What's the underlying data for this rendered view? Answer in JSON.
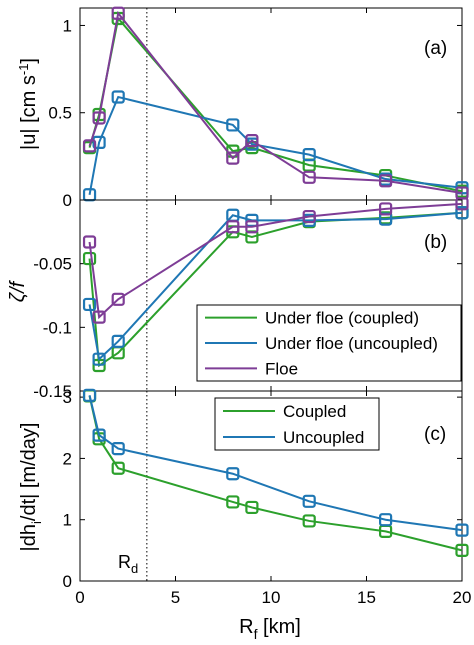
{
  "chart_data": [
    {
      "type": "line",
      "panel": "(a)",
      "ylabel": "|u| [cm s⁻¹]",
      "xlim": [
        0,
        20
      ],
      "ylim": [
        0,
        1.1
      ],
      "yticks": [
        0,
        0.5,
        1
      ],
      "ytick_labels": [
        "0",
        "0.5",
        "1"
      ],
      "x": [
        0.5,
        1,
        2,
        8,
        9,
        12,
        16,
        20
      ],
      "series": [
        {
          "key": "coupled",
          "color": "#2ca02c",
          "values": [
            0.3,
            0.49,
            1.04,
            0.28,
            0.3,
            0.2,
            0.14,
            0.05
          ]
        },
        {
          "key": "uncoupled",
          "color": "#1f77b4",
          "values": [
            0.03,
            0.33,
            0.59,
            0.43,
            0.32,
            0.26,
            0.12,
            0.07
          ]
        },
        {
          "key": "floe",
          "color": "#7e3d96",
          "values": [
            0.31,
            0.47,
            1.07,
            0.24,
            0.34,
            0.13,
            0.11,
            0.04
          ]
        }
      ]
    },
    {
      "type": "line",
      "panel": "(b)",
      "ylabel": "ζ/f",
      "xlim": [
        0,
        20
      ],
      "ylim": [
        -0.15,
        0
      ],
      "yticks": [
        -0.15,
        -0.1,
        -0.05
      ],
      "ytick_labels": [
        "-0.15",
        "-0.1",
        "-0.05"
      ],
      "x": [
        0.5,
        1,
        2,
        8,
        9,
        12,
        16,
        20
      ],
      "legend": {
        "position": "bottom-right",
        "entries": [
          "Under floe (coupled)",
          "Under floe (uncoupled)",
          "Floe"
        ]
      },
      "series": [
        {
          "key": "coupled",
          "name": "Under floe (coupled)",
          "color": "#2ca02c",
          "values": [
            -0.046,
            -0.13,
            -0.12,
            -0.025,
            -0.029,
            -0.017,
            -0.014,
            -0.01
          ]
        },
        {
          "key": "uncoupled",
          "name": "Under floe (uncoupled)",
          "color": "#1f77b4",
          "values": [
            -0.082,
            -0.125,
            -0.111,
            -0.012,
            -0.016,
            -0.016,
            -0.015,
            -0.01
          ]
        },
        {
          "key": "floe",
          "name": "Floe",
          "color": "#7e3d96",
          "values": [
            -0.033,
            -0.092,
            -0.078,
            -0.021,
            -0.021,
            -0.013,
            -0.007,
            -0.003
          ]
        }
      ]
    },
    {
      "type": "line",
      "panel": "(c)",
      "ylabel": "|dh_i/dt| [m/day]",
      "xlabel": "R_f [km]",
      "xlim": [
        0,
        20
      ],
      "ylim": [
        0,
        3.1
      ],
      "xticks": [
        0,
        5,
        10,
        15,
        20
      ],
      "xtick_labels": [
        "0",
        "5",
        "10",
        "15",
        "20"
      ],
      "yticks": [
        0,
        1,
        2,
        3
      ],
      "ytick_labels": [
        "0",
        "1",
        "2",
        "3"
      ],
      "x": [
        0.5,
        1,
        2,
        8,
        9,
        12,
        16,
        20
      ],
      "legend": {
        "position": "top-right",
        "entries": [
          "Coupled",
          "Uncoupled"
        ]
      },
      "series": [
        {
          "key": "coupled",
          "name": "Coupled",
          "color": "#2ca02c",
          "values": [
            3.02,
            2.32,
            1.84,
            1.29,
            1.2,
            0.98,
            0.81,
            0.5
          ]
        },
        {
          "key": "uncoupled",
          "name": "Uncoupled",
          "color": "#1f77b4",
          "values": [
            3.03,
            2.38,
            2.16,
            1.75,
            null,
            1.3,
            1.0,
            0.83
          ]
        }
      ]
    }
  ],
  "annotation": {
    "rd_label": "R",
    "rd_sub": "d",
    "rd_x": 3.5
  },
  "labels": {
    "a": "(a)",
    "b": "(b)",
    "c": "(c)",
    "ylabel_a_main": "|u| [cm s",
    "ylabel_a_sup": "-1",
    "ylabel_a_end": "]",
    "ylabel_b": "ζ/f",
    "ylabel_c_main": "|dh",
    "ylabel_c_sub": "i",
    "ylabel_c_end": "/dt| [m/day]",
    "xlabel_main": "R",
    "xlabel_sub": "f",
    "xlabel_end": " [km]"
  },
  "colors": {
    "coupled": "#2ca02c",
    "uncoupled": "#1f77b4",
    "floe": "#7e3d96"
  }
}
